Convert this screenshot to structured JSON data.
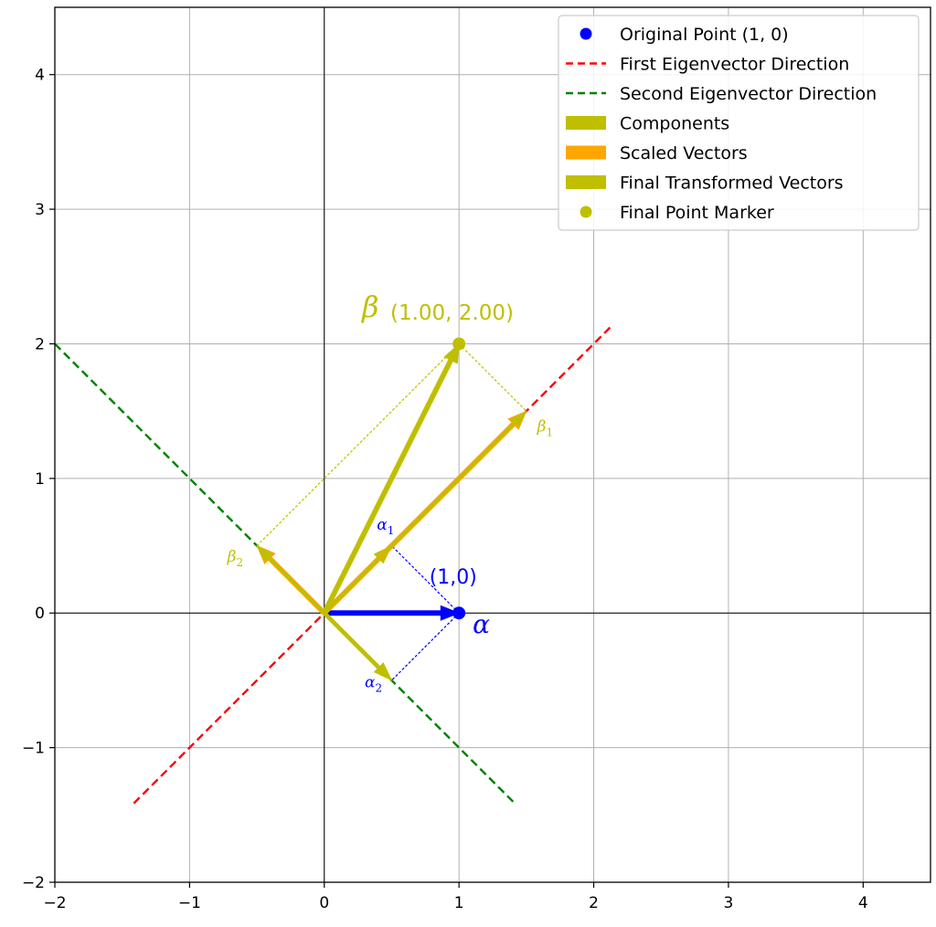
{
  "chart_data": {
    "type": "line",
    "title": "",
    "xlabel": "",
    "ylabel": "",
    "xlim": [
      -2,
      4.5
    ],
    "ylim": [
      -2,
      4.5
    ],
    "xticks": [
      -2,
      -1,
      0,
      1,
      2,
      3,
      4
    ],
    "yticks": [
      -2,
      -1,
      0,
      1,
      2,
      3,
      4
    ],
    "xtick_labels": [
      "−2",
      "−1",
      "0",
      "1",
      "2",
      "3",
      "4"
    ],
    "ytick_labels": [
      "−2",
      "−1",
      "0",
      "1",
      "2",
      "3",
      "4"
    ],
    "grid": true,
    "axes_lines": {
      "x": 0,
      "y": 0
    },
    "legend_position": "top-right",
    "legend": [
      {
        "label": "Original Point (1, 0)",
        "marker": "dot",
        "color": "#0000ff"
      },
      {
        "label": "First Eigenvector Direction",
        "marker": "dashed",
        "color": "#ff0000"
      },
      {
        "label": "Second Eigenvector Direction",
        "marker": "dashed",
        "color": "#008000"
      },
      {
        "label": "Components",
        "marker": "patch",
        "color": "#bfbf00"
      },
      {
        "label": "Scaled Vectors",
        "marker": "patch",
        "color": "#ffa500"
      },
      {
        "label": "Final Transformed Vectors",
        "marker": "patch",
        "color": "#bfbf00"
      },
      {
        "label": "Final Point Marker",
        "marker": "dot",
        "color": "#bfbf00"
      }
    ],
    "eigen_lines": [
      {
        "name": "First Eigenvector Direction",
        "color": "#ff0000",
        "from": [
          -1.414,
          -1.414
        ],
        "to": [
          2.121,
          2.121
        ]
      },
      {
        "name": "Second Eigenvector Direction",
        "color": "#008000",
        "from": [
          -2.0,
          2.0
        ],
        "to": [
          1.414,
          -1.414
        ]
      }
    ],
    "vectors": [
      {
        "id": "alpha",
        "from": [
          0,
          0
        ],
        "to": [
          1,
          0
        ],
        "color": "#0000ff",
        "width": "thick"
      },
      {
        "id": "alpha-1-component",
        "from": [
          0,
          0
        ],
        "to": [
          0.5,
          0.5
        ],
        "color": "#bfbf00",
        "width": "medium"
      },
      {
        "id": "alpha-2-component",
        "from": [
          0,
          0
        ],
        "to": [
          0.5,
          -0.5
        ],
        "color": "#bfbf00",
        "width": "medium"
      },
      {
        "id": "beta-1-scaled",
        "from": [
          0,
          0
        ],
        "to": [
          1.5,
          1.5
        ],
        "color": "#ffa500",
        "width": "thick"
      },
      {
        "id": "beta-2-scaled",
        "from": [
          0,
          0
        ],
        "to": [
          -0.5,
          0.5
        ],
        "color": "#ffa500",
        "width": "thick"
      },
      {
        "id": "beta-1-final",
        "from": [
          0,
          0
        ],
        "to": [
          1.5,
          1.5
        ],
        "color": "#bfbf00",
        "width": "thin"
      },
      {
        "id": "beta-2-final",
        "from": [
          0,
          0
        ],
        "to": [
          -0.5,
          0.5
        ],
        "color": "#bfbf00",
        "width": "thin"
      },
      {
        "id": "beta",
        "from": [
          0,
          0
        ],
        "to": [
          1,
          2
        ],
        "color": "#bfbf00",
        "width": "thick"
      }
    ],
    "guides": [
      {
        "from": [
          1,
          0
        ],
        "to": [
          0.5,
          0.5
        ],
        "color": "#0000ff"
      },
      {
        "from": [
          1,
          0
        ],
        "to": [
          0.5,
          -0.5
        ],
        "color": "#0000ff"
      },
      {
        "from": [
          1,
          2
        ],
        "to": [
          1.5,
          1.5
        ],
        "color": "#bfbf00"
      },
      {
        "from": [
          1,
          2
        ],
        "to": [
          -0.5,
          0.5
        ],
        "color": "#bfbf00"
      }
    ],
    "points": [
      {
        "name": "Original Point (1, 0)",
        "x": 1,
        "y": 0,
        "color": "#0000ff"
      },
      {
        "name": "Final Point Marker",
        "x": 1,
        "y": 2,
        "color": "#bfbf00"
      }
    ],
    "annotations": {
      "alpha_symbol": "α",
      "alpha_coord": "(1,0)",
      "alpha_1": {
        "base": "α",
        "sub": "1"
      },
      "alpha_2": {
        "base": "α",
        "sub": "2"
      },
      "beta_symbol": "β",
      "beta_coord": "(1.00, 2.00)",
      "beta_1": {
        "base": "β",
        "sub": "1"
      },
      "beta_2": {
        "base": "β",
        "sub": "2"
      }
    }
  }
}
